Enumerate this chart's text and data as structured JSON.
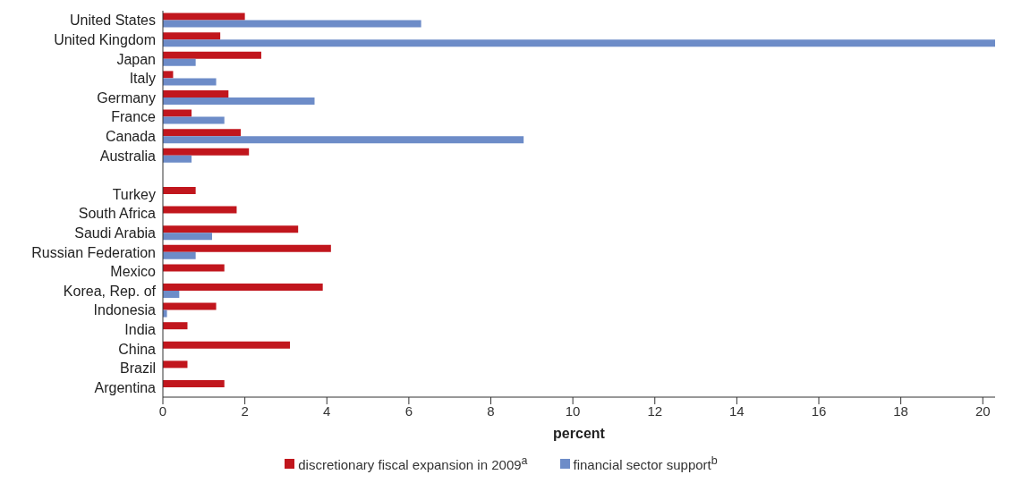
{
  "chart_data": {
    "type": "bar",
    "orientation": "horizontal",
    "xlabel": "percent",
    "categories": [
      "United States",
      "United Kingdom",
      "Japan",
      "Italy",
      "Germany",
      "France",
      "Canada",
      "Australia",
      null,
      "Turkey",
      "South Africa",
      "Saudi Arabia",
      "Russian Federation",
      "Mexico",
      "Korea, Rep. of",
      "Indonesia",
      "India",
      "China",
      "Brazil",
      "Argentina"
    ],
    "series": [
      {
        "name": "discretionary fiscal expansion in 2009$^{a}$",
        "color": "#c1161d",
        "values": [
          2.0,
          1.4,
          2.4,
          0.25,
          1.6,
          0.7,
          1.9,
          2.1,
          null,
          0.8,
          1.8,
          3.3,
          4.1,
          1.5,
          3.9,
          1.3,
          0.6,
          3.1,
          0.6,
          1.5
        ]
      },
      {
        "name": "financial sector support$^{b}$",
        "color": "#6d8cc8",
        "values": [
          6.3,
          20.3,
          0.8,
          1.3,
          3.7,
          1.5,
          8.8,
          0.7,
          null,
          null,
          null,
          1.2,
          0.8,
          null,
          0.4,
          0.1,
          null,
          null,
          null,
          null
        ]
      }
    ],
    "xlim": [
      0,
      20.3
    ],
    "xticks": [
      0,
      2,
      4,
      6,
      8,
      10,
      12,
      14,
      16,
      18,
      20
    ],
    "grid": false,
    "legend": "bottom"
  }
}
